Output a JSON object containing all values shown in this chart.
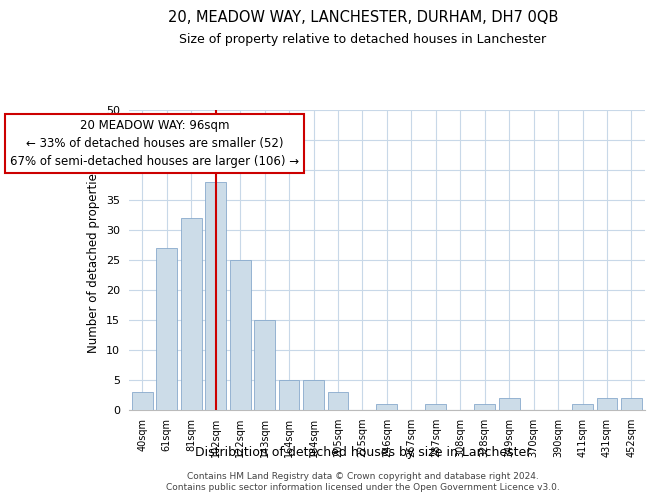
{
  "title": "20, MEADOW WAY, LANCHESTER, DURHAM, DH7 0QB",
  "subtitle": "Size of property relative to detached houses in Lanchester",
  "xlabel": "Distribution of detached houses by size in Lanchester",
  "ylabel": "Number of detached properties",
  "bar_labels": [
    "40sqm",
    "61sqm",
    "81sqm",
    "102sqm",
    "122sqm",
    "143sqm",
    "164sqm",
    "184sqm",
    "205sqm",
    "225sqm",
    "246sqm",
    "267sqm",
    "287sqm",
    "308sqm",
    "328sqm",
    "349sqm",
    "370sqm",
    "390sqm",
    "411sqm",
    "431sqm",
    "452sqm"
  ],
  "bar_values": [
    3,
    27,
    32,
    38,
    25,
    15,
    5,
    5,
    3,
    0,
    1,
    0,
    1,
    0,
    1,
    2,
    0,
    0,
    1,
    2,
    2
  ],
  "bar_color": "#ccdce8",
  "bar_edge_color": "#88aacc",
  "ylim": [
    0,
    50
  ],
  "yticks": [
    0,
    5,
    10,
    15,
    20,
    25,
    30,
    35,
    40,
    45,
    50
  ],
  "vline_x": 3.0,
  "vline_color": "#cc0000",
  "annotation_title": "20 MEADOW WAY: 96sqm",
  "annotation_line1": "← 33% of detached houses are smaller (52)",
  "annotation_line2": "67% of semi-detached houses are larger (106) →",
  "annotation_box_color": "#ffffff",
  "annotation_box_edge": "#cc0000",
  "footer_line1": "Contains HM Land Registry data © Crown copyright and database right 2024.",
  "footer_line2": "Contains public sector information licensed under the Open Government Licence v3.0.",
  "bg_color": "#ffffff",
  "grid_color": "#c8d8e8"
}
